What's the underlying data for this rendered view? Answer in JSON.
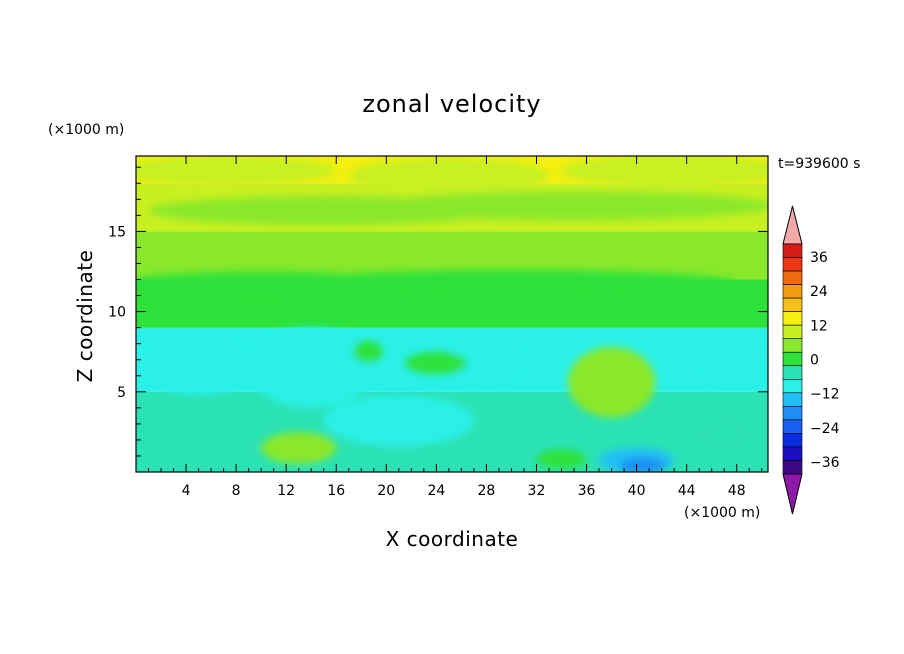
{
  "chart_data": {
    "type": "heatmap",
    "title": "zonal velocity",
    "xlabel": "X coordinate",
    "ylabel": "Z coordinate",
    "x_unit": "(×1000 m)",
    "z_unit": "(×1000 m)",
    "time_label": "t=939600 s",
    "xlim": [
      0,
      50.5
    ],
    "ylim": [
      0,
      19.7
    ],
    "x_ticks": [
      4,
      8,
      12,
      16,
      20,
      24,
      28,
      32,
      36,
      40,
      44,
      48
    ],
    "y_ticks": [
      5,
      10,
      15
    ],
    "colorbar": {
      "labels": [
        36,
        24,
        12,
        0,
        -12,
        -24,
        -36
      ],
      "levels": [
        -42,
        -36,
        -30,
        -24,
        -18,
        -12,
        -6,
        0,
        6,
        12,
        18,
        24,
        30,
        36,
        42
      ],
      "colors": [
        "#3b0a83",
        "#1c0fc0",
        "#0a2de0",
        "#1a5ff0",
        "#1e8ef5",
        "#22bff5",
        "#2af0e8",
        "#2ae2b4",
        "#2de23a",
        "#8ae82c",
        "#c8f020",
        "#f4ef10",
        "#f6c018",
        "#f49a10",
        "#f06a12",
        "#ec3614",
        "#d41c18"
      ],
      "over_color": "#f4a8a8",
      "under_color": "#8e18a8"
    },
    "field_description_levels": {
      "z_18_to_19.7": 20,
      "z_15_to_18": 14,
      "z_12_to_15": 8,
      "z_9_to_12": 2,
      "z_5_to_9": -8,
      "z_0_to_5": -4,
      "min_near_x40_z0.3": -22
    }
  },
  "colors": {
    "frame": "#000000",
    "background": "#ffffff"
  }
}
